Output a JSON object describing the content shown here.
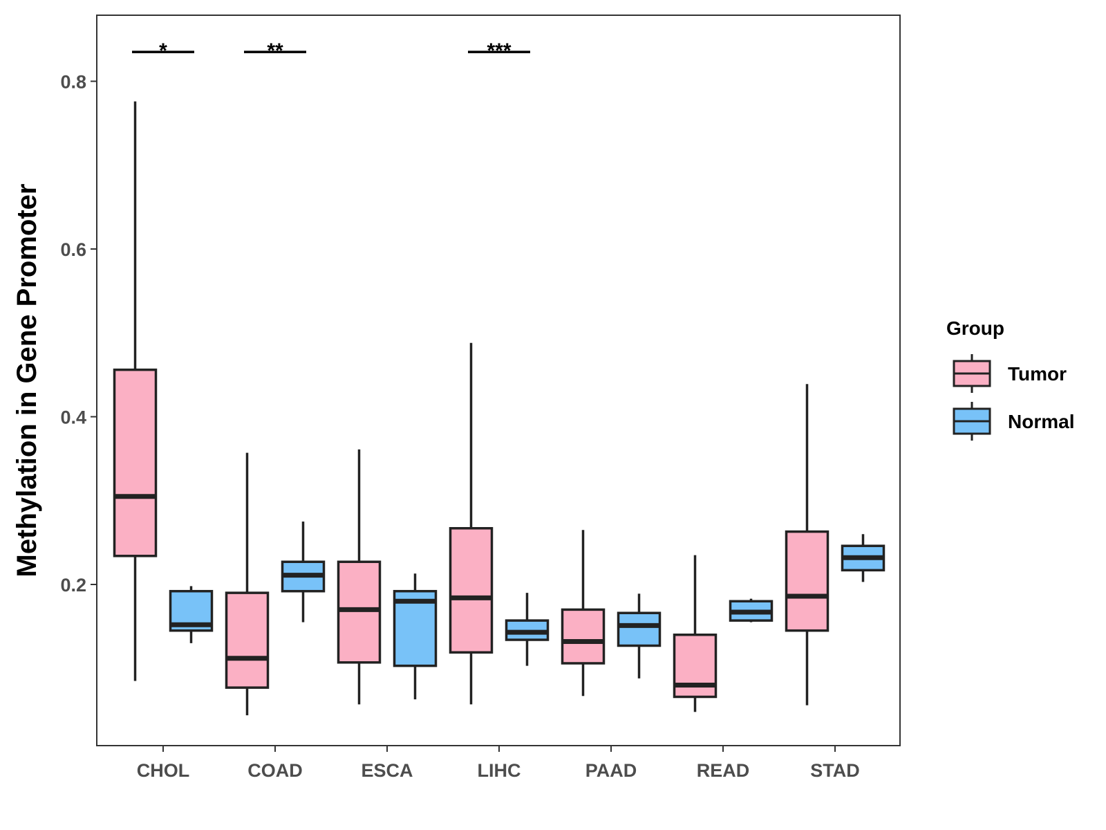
{
  "chart_data": {
    "type": "boxplot",
    "title": "",
    "xlabel": "",
    "ylabel": "Methylation in Gene Promoter",
    "ylim": [
      0.01,
      0.88
    ],
    "yticks": [
      0.2,
      0.4,
      0.6,
      0.8
    ],
    "ytick_labels": [
      "0.2",
      "0.4",
      "0.6",
      "0.8"
    ],
    "grid": false,
    "categories": [
      "CHOL",
      "COAD",
      "ESCA",
      "LIHC",
      "PAAD",
      "READ",
      "STAD"
    ],
    "legend": {
      "title": "Group",
      "position": "right",
      "entries": [
        {
          "name": "Tumor",
          "color": "#FBB0C4"
        },
        {
          "name": "Normal",
          "color": "#78C2F8"
        }
      ]
    },
    "series": [
      {
        "name": "Tumor",
        "color": "#FBB0C4",
        "boxes": [
          {
            "whisker_low": 0.085,
            "q1": 0.234,
            "median": 0.305,
            "q3": 0.456,
            "whisker_high": 0.776
          },
          {
            "whisker_low": 0.044,
            "q1": 0.077,
            "median": 0.112,
            "q3": 0.19,
            "whisker_high": 0.357
          },
          {
            "whisker_low": 0.057,
            "q1": 0.107,
            "median": 0.17,
            "q3": 0.227,
            "whisker_high": 0.361
          },
          {
            "whisker_low": 0.057,
            "q1": 0.119,
            "median": 0.184,
            "q3": 0.267,
            "whisker_high": 0.488
          },
          {
            "whisker_low": 0.067,
            "q1": 0.106,
            "median": 0.132,
            "q3": 0.17,
            "whisker_high": 0.265
          },
          {
            "whisker_low": 0.048,
            "q1": 0.066,
            "median": 0.08,
            "q3": 0.14,
            "whisker_high": 0.235
          },
          {
            "whisker_low": 0.056,
            "q1": 0.145,
            "median": 0.186,
            "q3": 0.263,
            "whisker_high": 0.439
          }
        ]
      },
      {
        "name": "Normal",
        "color": "#78C2F8",
        "boxes": [
          {
            "whisker_low": 0.13,
            "q1": 0.145,
            "median": 0.152,
            "q3": 0.192,
            "whisker_high": 0.198
          },
          {
            "whisker_low": 0.155,
            "q1": 0.192,
            "median": 0.211,
            "q3": 0.227,
            "whisker_high": 0.275
          },
          {
            "whisker_low": 0.063,
            "q1": 0.103,
            "median": 0.18,
            "q3": 0.192,
            "whisker_high": 0.213
          },
          {
            "whisker_low": 0.103,
            "q1": 0.134,
            "median": 0.143,
            "q3": 0.157,
            "whisker_high": 0.19
          },
          {
            "whisker_low": 0.088,
            "q1": 0.127,
            "median": 0.151,
            "q3": 0.166,
            "whisker_high": 0.189
          },
          {
            "whisker_low": 0.155,
            "q1": 0.157,
            "median": 0.167,
            "q3": 0.18,
            "whisker_high": 0.183
          },
          {
            "whisker_low": 0.203,
            "q1": 0.217,
            "median": 0.232,
            "q3": 0.246,
            "whisker_high": 0.26
          }
        ]
      }
    ],
    "annotations": [
      {
        "category": "CHOL",
        "text": "*",
        "y": 0.835
      },
      {
        "category": "COAD",
        "text": "**",
        "y": 0.835
      },
      {
        "category": "LIHC",
        "text": "***",
        "y": 0.835
      }
    ]
  }
}
